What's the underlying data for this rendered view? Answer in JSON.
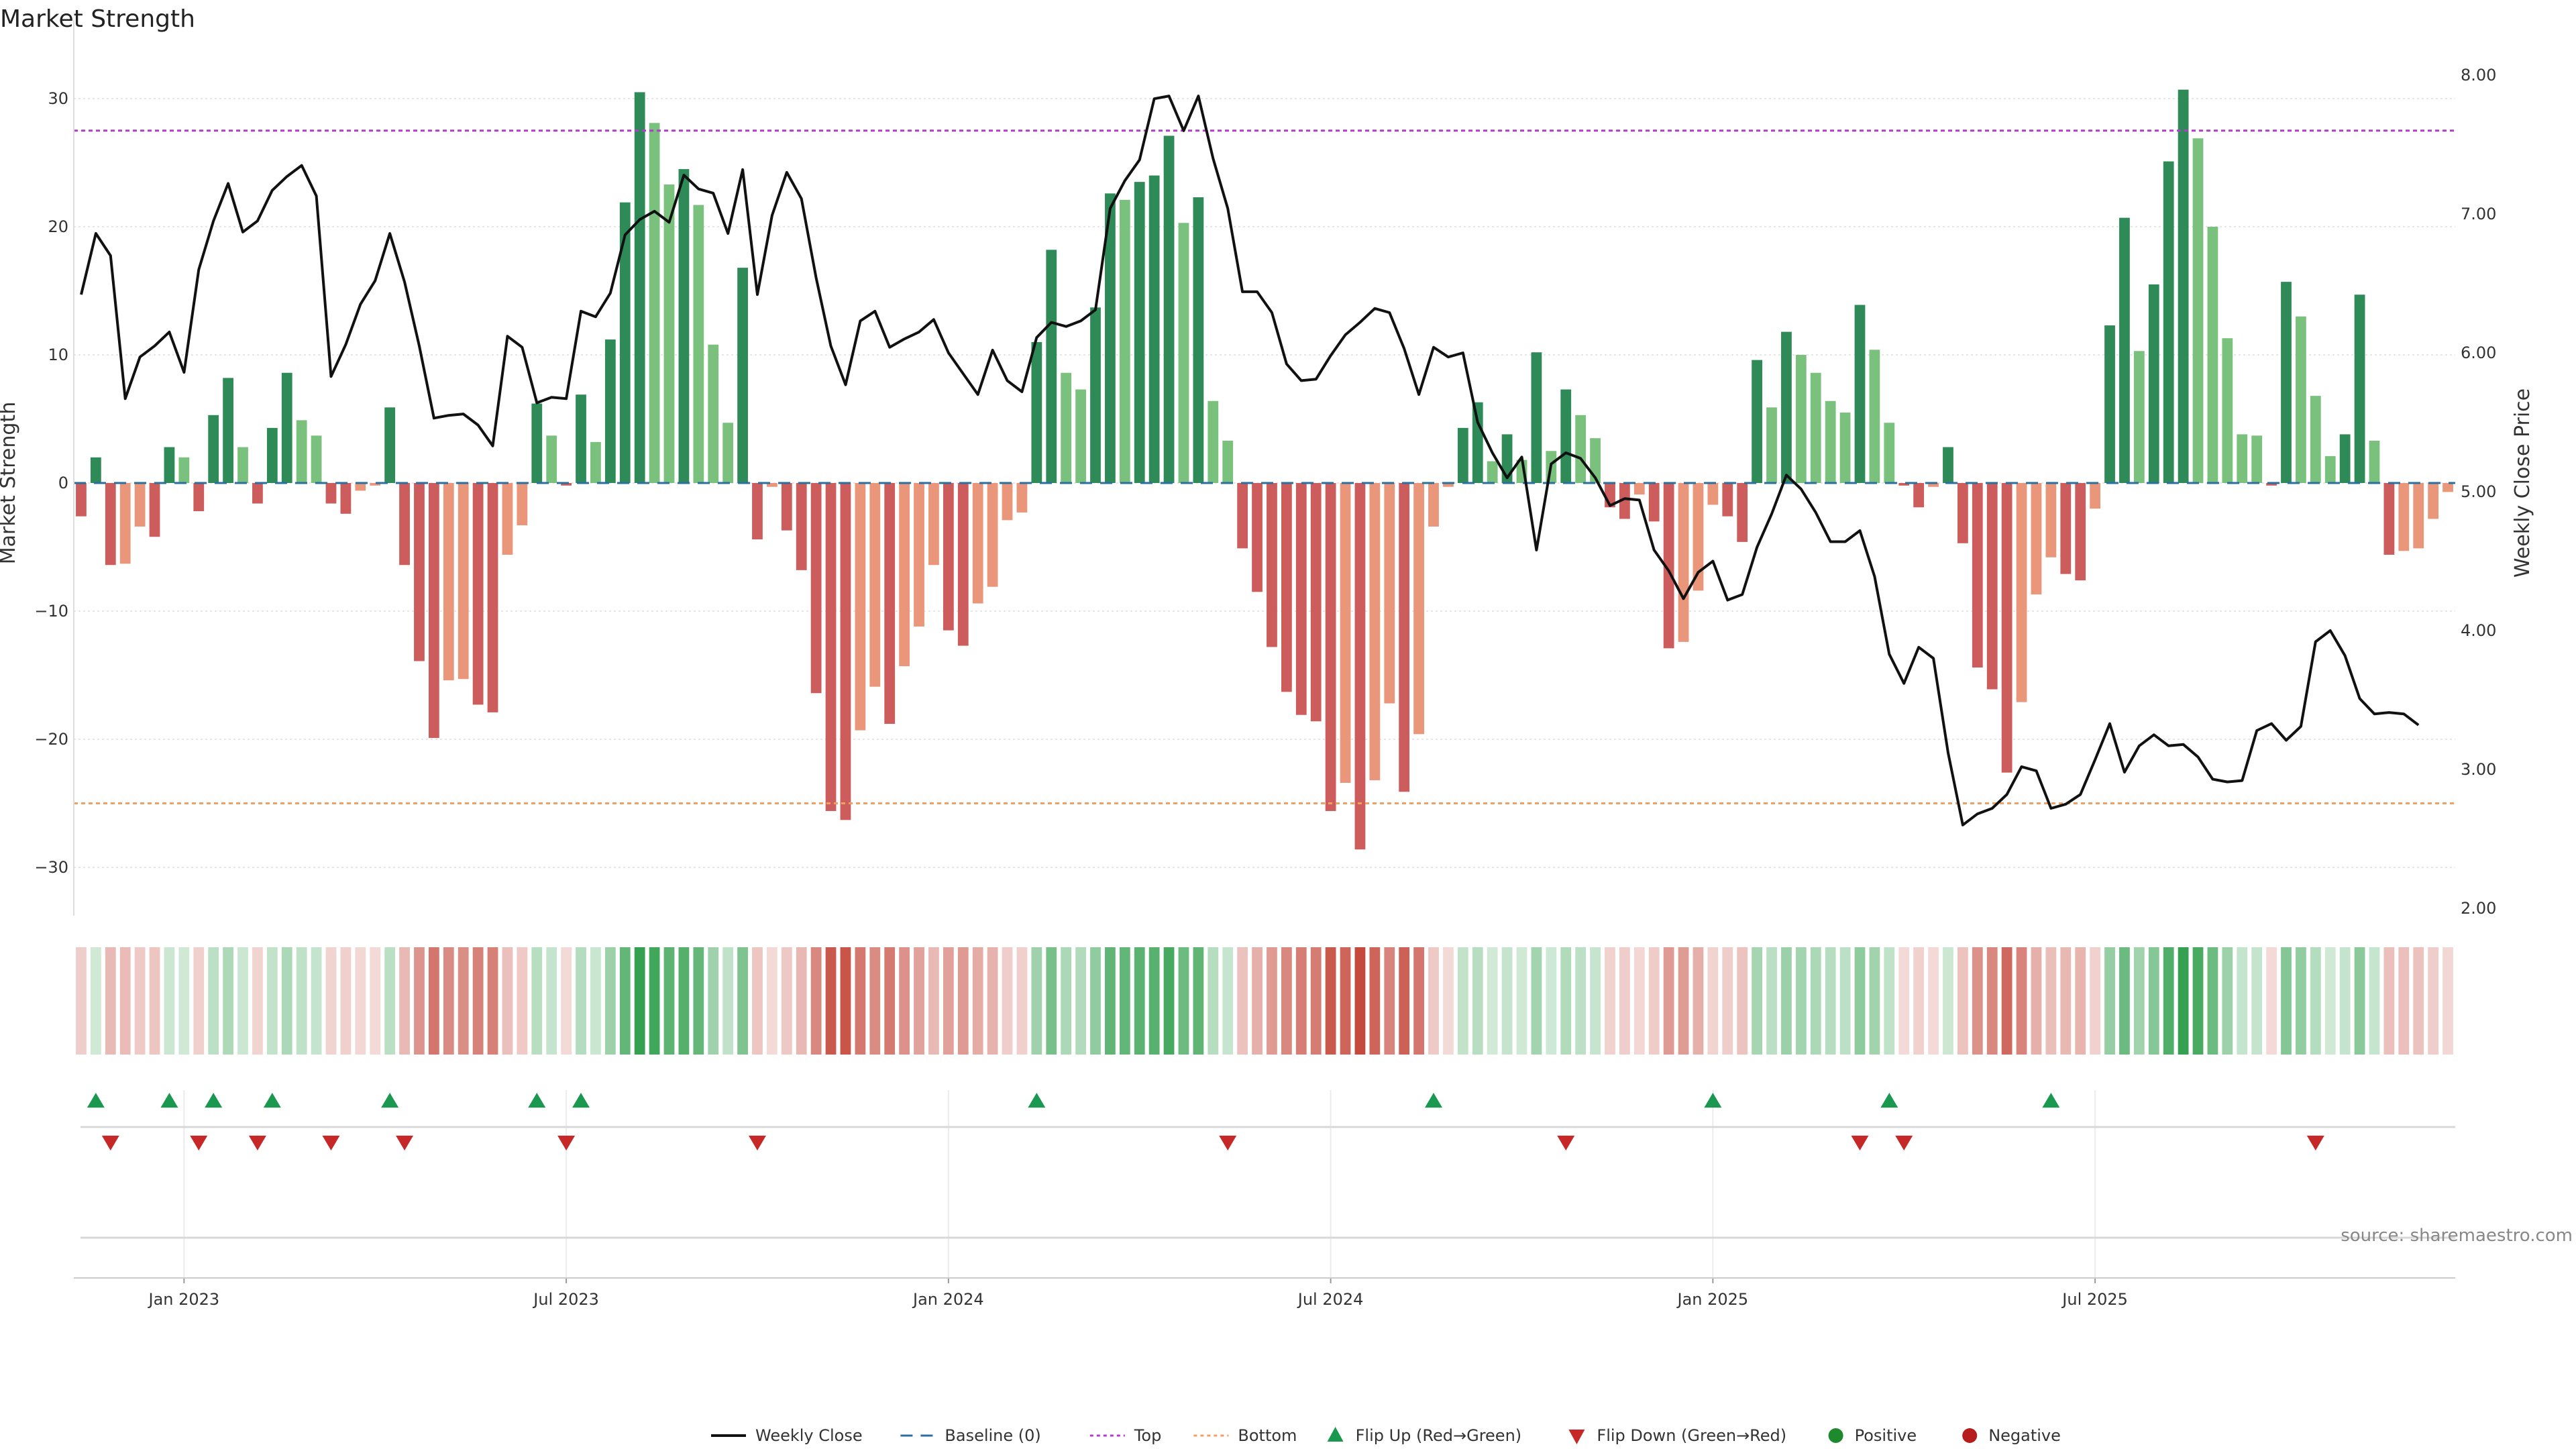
{
  "chart_data": {
    "type": "bar",
    "title": "Market Strength",
    "ylabel_left": "Market Strength",
    "ylabel_right": "Weekly Close Price",
    "ylim_left": [
      -33,
      33
    ],
    "ylim_right": [
      2.0,
      8.0
    ],
    "yticks_left": [
      30,
      20,
      10,
      0,
      -10,
      -20,
      -30
    ],
    "yticks_left_labels": [
      "30",
      "20",
      "10",
      "0",
      "−10",
      "−20",
      "−30"
    ],
    "yticks_right": [
      8.0,
      7.0,
      6.0,
      5.0,
      4.0,
      3.0,
      2.0
    ],
    "yticks_right_labels": [
      "8.00",
      "7.00",
      "6.00",
      "5.00",
      "4.00",
      "3.00",
      "2.00"
    ],
    "x_ticks": [
      {
        "week": 7,
        "label": "Jan 2023"
      },
      {
        "week": 33,
        "label": "Jul 2023"
      },
      {
        "week": 59,
        "label": "Jan 2024"
      },
      {
        "week": 85,
        "label": "Jul 2024"
      },
      {
        "week": 111,
        "label": "Jan 2025"
      },
      {
        "week": 137,
        "label": "Jul 2025"
      }
    ],
    "top_line": 27.5,
    "bottom_line": -25,
    "strength": [
      -2.6,
      2.0,
      -6.4,
      -6.3,
      -3.4,
      -4.2,
      2.8,
      2.0,
      -2.2,
      5.3,
      8.2,
      2.8,
      -1.6,
      4.3,
      8.6,
      4.9,
      3.7,
      -1.6,
      -2.4,
      -0.6,
      -0.2,
      5.9,
      -6.4,
      -13.9,
      -19.9,
      -15.4,
      -15.3,
      -17.3,
      -17.9,
      -5.6,
      -3.3,
      6.2,
      3.7,
      -0.2,
      6.9,
      3.2,
      11.2,
      21.9,
      30.5,
      28.1,
      23.3,
      24.5,
      21.7,
      10.8,
      4.7,
      16.8,
      -4.4,
      -0.3,
      -3.7,
      -6.8,
      -16.4,
      -25.6,
      -26.3,
      -19.3,
      -15.9,
      -18.8,
      -14.3,
      -11.2,
      -6.4,
      -11.5,
      -12.7,
      -9.4,
      -8.1,
      -2.9,
      -2.3,
      11.0,
      18.2,
      8.6,
      7.3,
      13.7,
      22.6,
      22.1,
      23.5,
      24.0,
      27.1,
      20.3,
      22.3,
      6.4,
      3.3,
      -5.1,
      -8.5,
      -12.8,
      -16.3,
      -18.1,
      -18.6,
      -25.6,
      -23.4,
      -28.6,
      -23.2,
      -17.2,
      -24.1,
      -19.6,
      -3.4,
      -0.3,
      4.3,
      6.3,
      1.7,
      3.8,
      1.8,
      10.2,
      2.5,
      7.3,
      5.3,
      3.5,
      -1.9,
      -2.8,
      -0.9,
      -3.0,
      -12.9,
      -12.4,
      -8.4,
      -1.7,
      -2.6,
      -4.6,
      9.6,
      5.9,
      11.8,
      10.0,
      8.6,
      6.4,
      5.5,
      13.9,
      10.4,
      4.7,
      -0.2,
      -1.9,
      -0.3,
      2.8,
      -4.7,
      -14.4,
      -16.1,
      -22.6,
      -17.1,
      -8.7,
      -5.8,
      -7.1,
      -7.6,
      -2.0,
      12.3,
      20.7,
      10.3,
      15.5,
      25.1,
      30.7,
      26.9,
      20.0,
      11.3,
      3.8,
      3.7,
      -0.2,
      15.7,
      13.0,
      6.8,
      2.1,
      3.8,
      14.7,
      3.3,
      -5.6,
      -5.3,
      -5.1,
      -2.8,
      -0.7
    ],
    "close": [
      6.42,
      6.86,
      6.7,
      5.67,
      5.97,
      6.05,
      6.15,
      5.86,
      6.6,
      6.95,
      7.22,
      6.87,
      6.95,
      7.17,
      7.27,
      7.35,
      7.13,
      5.83,
      6.06,
      6.35,
      6.52,
      6.86,
      6.51,
      6.05,
      5.53,
      5.55,
      5.56,
      5.48,
      5.33,
      6.12,
      6.04,
      5.64,
      5.68,
      5.67,
      6.3,
      6.26,
      6.43,
      6.85,
      6.96,
      7.02,
      6.94,
      7.28,
      7.18,
      7.15,
      6.86,
      7.32,
      6.42,
      6.99,
      7.3,
      7.11,
      6.54,
      6.05,
      5.77,
      6.23,
      6.3,
      6.04,
      6.1,
      6.15,
      6.24,
      6.0,
      5.85,
      5.7,
      6.02,
      5.8,
      5.72,
      6.11,
      6.22,
      6.19,
      6.23,
      6.31,
      7.04,
      7.24,
      7.39,
      7.83,
      7.85,
      7.6,
      7.85,
      7.4,
      7.04,
      6.44,
      6.44,
      6.29,
      5.92,
      5.8,
      5.81,
      5.98,
      6.13,
      6.22,
      6.32,
      6.29,
      6.03,
      5.7,
      6.04,
      5.97,
      6.0,
      5.5,
      5.28,
      5.1,
      5.25,
      4.58,
      5.2,
      5.28,
      5.24,
      5.1,
      4.9,
      4.95,
      4.94,
      4.58,
      4.43,
      4.23,
      4.42,
      4.5,
      4.22,
      4.26,
      4.6,
      4.84,
      5.12,
      5.02,
      4.85,
      4.64,
      4.64,
      4.72,
      4.39,
      3.83,
      3.62,
      3.88,
      3.8,
      3.12,
      2.6,
      2.68,
      2.72,
      2.82,
      3.02,
      2.99,
      2.72,
      2.75,
      2.82,
      3.07,
      3.33,
      2.98,
      3.17,
      3.25,
      3.17,
      3.18,
      3.09,
      2.93,
      2.91,
      2.92,
      3.28,
      3.33,
      3.21,
      3.31,
      3.92,
      4.0,
      3.82,
      3.51,
      3.4,
      3.41,
      3.4,
      3.32
    ],
    "flip_up": [
      1,
      6,
      9,
      13,
      21,
      31,
      34,
      65,
      92,
      111,
      123,
      134
    ],
    "flip_down": [
      2,
      8,
      12,
      17,
      22,
      33,
      46,
      78,
      101,
      121,
      124,
      152
    ],
    "source": "source: sharemaestro.com",
    "legend": [
      {
        "label": "Weekly Close",
        "kind": "line",
        "color": "#111111"
      },
      {
        "label": "Baseline (0)",
        "kind": "dash",
        "color": "#2b6f9f"
      },
      {
        "label": "Top",
        "kind": "dot",
        "color": "#b03cc8"
      },
      {
        "label": "Bottom",
        "kind": "dot",
        "color": "#f0a060"
      },
      {
        "label": "Flip Up (Red→Green)",
        "kind": "up",
        "color": "#1a9850"
      },
      {
        "label": "Flip Down (Green→Red)",
        "kind": "down",
        "color": "#c62828"
      },
      {
        "label": "Positive",
        "kind": "circle",
        "color": "#1e8a2e"
      },
      {
        "label": "Negative",
        "kind": "circle",
        "color": "#b71c1c"
      }
    ],
    "colors": {
      "pos_strong": "#2e8b57",
      "pos_weak": "#7bc17e",
      "neg_strong": "#cd5c5c",
      "neg_weak": "#e9967a",
      "close_line": "#111111",
      "baseline": "#2b6f9f",
      "top": "#b03cc8",
      "bottom": "#f0a060"
    }
  }
}
